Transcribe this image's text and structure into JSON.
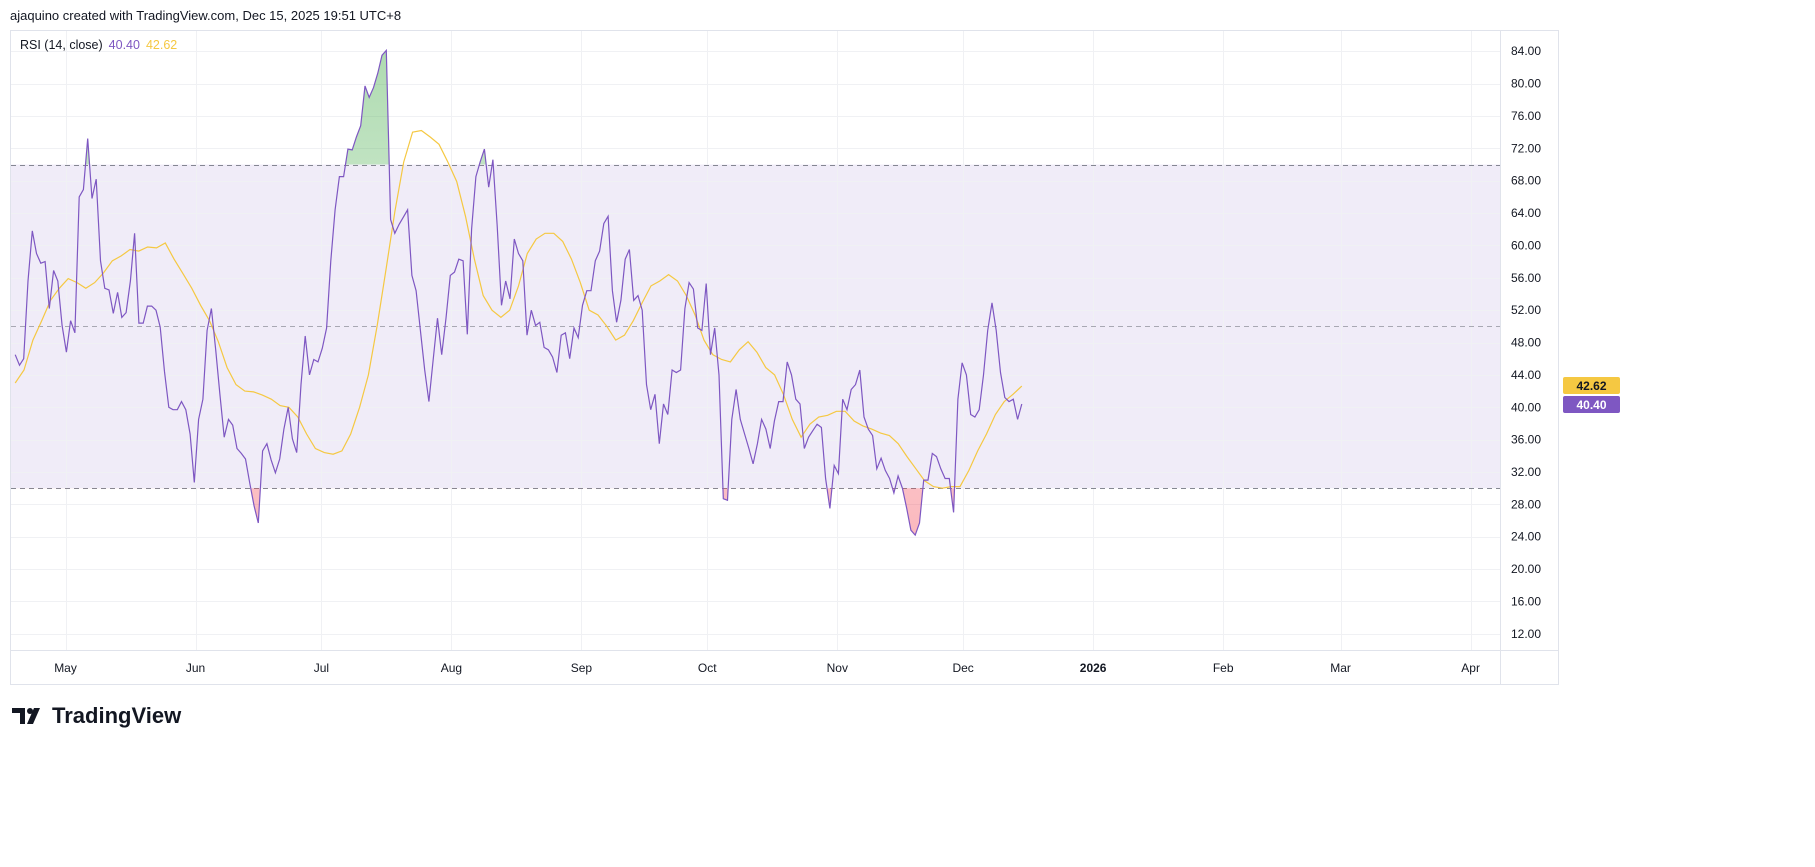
{
  "header": {
    "text": "ajaquino created with TradingView.com, Dec 15, 2025 19:51 UTC+8"
  },
  "legend": {
    "name": "RSI (14, close)",
    "rsi_value": "40.40",
    "ma_value": "42.62"
  },
  "footer": {
    "brand": "TradingView"
  },
  "colors": {
    "rsi": "#7e57c2",
    "ma": "#f5c842",
    "band": "#f0ecf8",
    "overbought_fill": "#4caf50",
    "oversold_fill": "#f23645",
    "grid": "#f0f1f4",
    "level_line": "#787b86"
  },
  "chart_data": {
    "type": "line",
    "title": "RSI (14, close)",
    "ylim": [
      10,
      86.5
    ],
    "y_ticks": [
      "84.00",
      "80.00",
      "76.00",
      "72.00",
      "68.00",
      "64.00",
      "60.00",
      "56.00",
      "52.00",
      "48.00",
      "44.00",
      "40.00",
      "36.00",
      "32.00",
      "28.00",
      "24.00",
      "20.00",
      "16.00",
      "12.00"
    ],
    "x_ticks": [
      {
        "label": "May",
        "date": "2025-05-01"
      },
      {
        "label": "Jun",
        "date": "2025-06-01"
      },
      {
        "label": "Jul",
        "date": "2025-07-01"
      },
      {
        "label": "Aug",
        "date": "2025-08-01"
      },
      {
        "label": "Sep",
        "date": "2025-09-01"
      },
      {
        "label": "Oct",
        "date": "2025-10-01"
      },
      {
        "label": "Nov",
        "date": "2025-11-01"
      },
      {
        "label": "Dec",
        "date": "2025-12-01"
      },
      {
        "label": "2026",
        "date": "2026-01-01",
        "bold": true
      },
      {
        "label": "Feb",
        "date": "2026-02-01"
      },
      {
        "label": "Mar",
        "date": "2026-03-01"
      },
      {
        "label": "Apr",
        "date": "2026-04-01"
      }
    ],
    "xlim": [
      "2025-04-18",
      "2026-04-08"
    ],
    "levels": {
      "upper": 70,
      "middle": 50,
      "lower": 30
    },
    "grid": true,
    "series": [
      {
        "name": "RSI",
        "start": "2025-04-19",
        "end": "2025-12-15",
        "last_label": "40.40",
        "values": [
          46.5,
          45.2,
          46,
          55.6,
          61.8,
          59,
          57.8,
          58,
          52.2,
          56.9,
          55.6,
          50.1,
          46.8,
          50.7,
          49.2,
          66,
          66.9,
          73.2,
          65.8,
          68.2,
          58.1,
          54.7,
          54.5,
          51.6,
          54.2,
          51.1,
          51.7,
          55.6,
          61.5,
          50.4,
          50.4,
          52.5,
          52.5,
          52,
          49.9,
          44.4,
          40,
          39.7,
          39.7,
          40.7,
          39.7,
          36.7,
          30.7,
          38.5,
          41,
          49.5,
          52.2,
          47.1,
          41.6,
          36.3,
          38.5,
          37.8,
          34.9,
          34.3,
          33.6,
          30.6,
          27.8,
          25.7,
          34.6,
          35.5,
          33.5,
          31.9,
          33.6,
          37.3,
          40,
          36.1,
          34.4,
          42.8,
          48.8,
          44,
          45.9,
          45.6,
          47.3,
          49.8,
          58.1,
          64.4,
          68.5,
          68.5,
          71.9,
          71.8,
          73.4,
          74.8,
          79.7,
          78.3,
          79.5,
          81.3,
          83.5,
          84.1,
          63.2,
          61.5,
          62.6,
          63.5,
          64.4,
          56.3,
          54.4,
          49.5,
          44.6,
          40.7,
          45.9,
          51,
          46.5,
          51,
          56.3,
          56.7,
          58.3,
          58.1,
          49,
          62,
          68.5,
          70.3,
          71.9,
          67.2,
          70.6,
          62.4,
          52.6,
          55.6,
          53.4,
          60.8,
          59,
          58.1,
          48.9,
          52,
          50.1,
          50.5,
          47.4,
          47.1,
          46.2,
          44.3,
          48.9,
          49.2,
          46,
          49.8,
          48.6,
          52.6,
          54.4,
          54.4,
          58.1,
          59.3,
          62.7,
          63.6,
          54.4,
          50.5,
          53.2,
          58.3,
          59.5,
          53.2,
          53.8,
          52,
          42.8,
          39.7,
          41.6,
          35.5,
          40.4,
          39.1,
          44.6,
          44.3,
          44.6,
          52.2,
          55.4,
          54.6,
          49.8,
          49.5,
          55.3,
          46.5,
          49.8,
          44,
          28.7,
          28.5,
          38.5,
          42.2,
          38.5,
          36.7,
          34.9,
          33,
          35.5,
          38.5,
          37.3,
          34.9,
          38.3,
          40.7,
          40.7,
          45.6,
          44,
          41,
          40.4,
          34.9,
          36.3,
          37.1,
          37.9,
          37.5,
          31.2,
          27.5,
          32.8,
          31.8,
          41,
          39.7,
          42.2,
          42.8,
          44.6,
          38.8,
          37.3,
          36.5,
          32.4,
          33.7,
          32.2,
          31.2,
          29.4,
          31.5,
          30,
          27.5,
          24.8,
          24.2,
          25.7,
          31,
          31,
          34.3,
          33.9,
          32.4,
          31.2,
          31.2,
          27,
          41,
          45.5,
          44,
          39.1,
          38.8,
          39.7,
          44,
          49.5,
          52.9,
          49.5,
          44.3,
          41.2,
          40.7,
          41,
          38.5,
          40.4
        ]
      },
      {
        "name": "RSI-based MA",
        "start": "2025-04-19",
        "end": "2025-12-15",
        "last_label": "42.62",
        "values": [
          43,
          44.6,
          48.3,
          50.7,
          53.2,
          54.7,
          55.9,
          55.4,
          54.7,
          55.4,
          56.6,
          58.1,
          58.7,
          59.5,
          59.3,
          59.8,
          59.7,
          60.3,
          58.3,
          56.5,
          54.7,
          52.6,
          50.7,
          48.1,
          44.9,
          42.8,
          42,
          41.9,
          41.5,
          41,
          40.2,
          40,
          38.8,
          36.7,
          34.9,
          34.4,
          34.2,
          34.6,
          36.7,
          40,
          44,
          50.1,
          57.1,
          64.2,
          70.3,
          74,
          74.2,
          73.4,
          72.5,
          70.3,
          67.9,
          63.6,
          58.3,
          53.8,
          52,
          51.1,
          52,
          55,
          59,
          60.8,
          61.5,
          61.5,
          60.5,
          58.3,
          55.4,
          52,
          51.4,
          50,
          48.3,
          48.9,
          50.7,
          52.9,
          55,
          55.6,
          56.4,
          55.6,
          53.8,
          51.4,
          48.3,
          46.5,
          45.9,
          45.6,
          47.1,
          48.1,
          46.8,
          44.9,
          44,
          41.6,
          38.5,
          36.3,
          37.9,
          38.8,
          39,
          39.5,
          39.5,
          38.3,
          37.7,
          37.3,
          36.8,
          36.5,
          35.5,
          33.9,
          32.4,
          30.9,
          30.2,
          30,
          30.2,
          30.2,
          32.2,
          34.6,
          36.7,
          39.1,
          40.7,
          41.6,
          42.62
        ]
      }
    ]
  }
}
